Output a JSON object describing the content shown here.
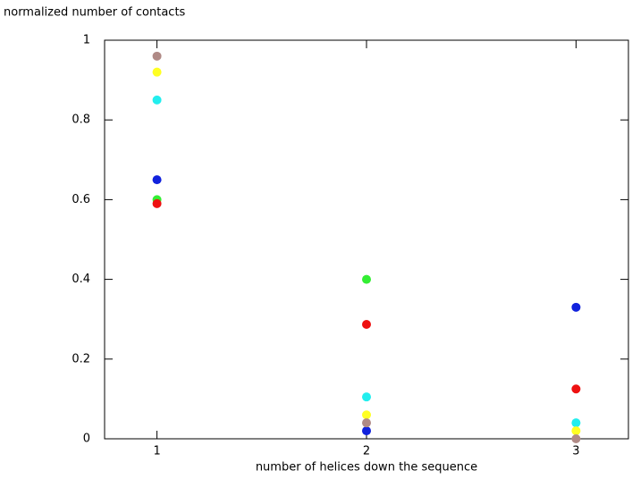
{
  "chart_data": {
    "type": "scatter",
    "y_label": "normalized number of contacts",
    "x_label": "number of helices down the sequence",
    "x": [
      1,
      2,
      3
    ],
    "series": [
      {
        "color": "#33ee33",
        "values": [
          0.6,
          0.4,
          null
        ]
      },
      {
        "color": "#ee1111",
        "values": [
          0.59,
          0.287,
          0.125
        ]
      },
      {
        "color": "#1122dd",
        "values": [
          0.65,
          0.02,
          0.33
        ]
      },
      {
        "color": "#22eeee",
        "values": [
          0.85,
          0.105,
          0.04
        ]
      },
      {
        "color": "#ffff22",
        "values": [
          0.92,
          0.06,
          0.02
        ]
      },
      {
        "color": "#b08a86",
        "values": [
          0.96,
          0.04,
          0.0
        ]
      }
    ],
    "xlim": [
      0.75,
      3.25
    ],
    "xticks": [
      1,
      2,
      3
    ],
    "ylim": [
      0,
      1
    ],
    "yticks": [
      0,
      0.2,
      0.4,
      0.6,
      0.8,
      1
    ]
  }
}
